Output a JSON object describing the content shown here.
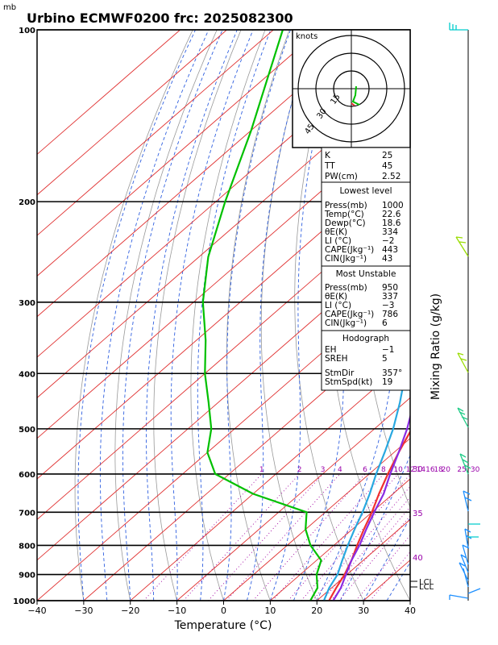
{
  "title": "Urbino ECMWF0200 frc: 2025082300",
  "pressure_unit": "mb",
  "chart_data": {
    "type": "line",
    "title": "Urbino ECMWF0200 frc: 2025082300",
    "xlabel": "Temperature (°C)",
    "ylabel_right": "Mixing Ratio (g/kg)",
    "xlim": [
      -40,
      40
    ],
    "ylim_pressure": [
      1000,
      100
    ],
    "x_ticks": [
      "−40",
      "−30",
      "−20",
      "−10",
      "0",
      "10",
      "20",
      "30",
      "40"
    ],
    "p_ticks": [
      "1000",
      "900",
      "800",
      "700",
      "600",
      "500",
      "400",
      "300",
      "200",
      "100"
    ],
    "mixing_ratio_labels": [
      "1",
      "2",
      "3",
      "4",
      "6",
      "8",
      "10",
      "12",
      "14",
      "16",
      "18",
      "20",
      "25",
      "30"
    ],
    "theta_e_labels": [
      "30",
      "35",
      "40"
    ],
    "series": [
      {
        "color": "#f03030",
        "points": [
          [
            22.6,
            1000
          ],
          [
            21.0,
            950
          ],
          [
            19.5,
            900
          ],
          [
            17.5,
            850
          ],
          [
            15.0,
            800
          ],
          [
            12.5,
            750
          ],
          [
            10.0,
            700
          ],
          [
            7.0,
            650
          ],
          [
            4.0,
            600
          ],
          [
            1.0,
            550
          ],
          [
            -2.0,
            500
          ],
          [
            -6.0,
            450
          ],
          [
            -10.0,
            400
          ],
          [
            -15.0,
            350
          ],
          [
            -21.0,
            300
          ],
          [
            -28.0,
            250
          ],
          [
            -38.0,
            200
          ],
          [
            -52.0,
            150
          ],
          [
            -72.0,
            100
          ]
        ]
      },
      {
        "color": "#00c000",
        "points": [
          [
            18.6,
            1000
          ],
          [
            17.0,
            950
          ],
          [
            13.5,
            900
          ],
          [
            11.0,
            850
          ],
          [
            5.0,
            800
          ],
          [
            0.0,
            750
          ],
          [
            -4.0,
            700
          ],
          [
            -20.0,
            650
          ],
          [
            -33.0,
            600
          ],
          [
            -40.0,
            550
          ],
          [
            -45.0,
            500
          ],
          [
            -52.0,
            450
          ],
          [
            -60.0,
            400
          ],
          [
            -68.0,
            350
          ],
          [
            -78.0,
            300
          ],
          [
            -88.0,
            250
          ],
          [
            -98.0,
            200
          ],
          [
            -110.0,
            150
          ],
          [
            -128.0,
            100
          ]
        ]
      },
      {
        "color": "#29a8e0",
        "points": [
          [
            21.5,
            1000
          ],
          [
            19.5,
            950
          ],
          [
            18.0,
            900
          ],
          [
            15.5,
            850
          ],
          [
            13.0,
            800
          ],
          [
            10.5,
            750
          ],
          [
            8.0,
            700
          ],
          [
            5.0,
            650
          ],
          [
            1.5,
            600
          ],
          [
            -2.0,
            550
          ],
          [
            -6.0,
            500
          ],
          [
            -11.0,
            450
          ],
          [
            -17.0,
            400
          ],
          [
            -23.0,
            350
          ],
          [
            -30.0,
            300
          ],
          [
            -38.5,
            250
          ],
          [
            -49.0,
            200
          ],
          [
            -64.0,
            150
          ],
          [
            -87.0,
            100
          ]
        ]
      },
      {
        "color": "#8a2be2",
        "points": [
          [
            23.5,
            1000
          ],
          [
            22.0,
            950
          ],
          [
            19.8,
            900
          ],
          [
            17.5,
            850
          ],
          [
            15.5,
            800
          ],
          [
            13.0,
            750
          ],
          [
            10.5,
            700
          ],
          [
            8.0,
            650
          ],
          [
            4.5,
            600
          ],
          [
            1.0,
            550
          ],
          [
            -3.0,
            500
          ],
          [
            -8.0,
            450
          ],
          [
            -14.0,
            400
          ],
          [
            -20.5,
            350
          ],
          [
            -27.5,
            300
          ],
          [
            -36.5,
            250
          ],
          [
            -47.0,
            200
          ],
          [
            -62.0,
            150
          ],
          [
            -83.0,
            100
          ]
        ]
      }
    ]
  },
  "hodograph": {
    "unit_label": "knots",
    "ring_labels": [
      "15",
      "30",
      "45"
    ]
  },
  "indices": {
    "rows": [
      [
        "K",
        "25"
      ],
      [
        "TT",
        "45"
      ],
      [
        "PW(cm)",
        "2.52"
      ]
    ]
  },
  "lowest_level": {
    "heading": "Lowest level",
    "rows": [
      [
        "Press(mb)",
        "1000"
      ],
      [
        "Temp(°C)",
        "22.6"
      ],
      [
        "Dewp(°C)",
        "18.6"
      ],
      [
        "θE(K)",
        "334"
      ],
      [
        "LI (°C)",
        "−2"
      ],
      [
        "CAPE(Jkg⁻¹)",
        "443"
      ],
      [
        "CIN(Jkg⁻¹)",
        "43"
      ]
    ]
  },
  "most_unstable": {
    "heading": "Most Unstable",
    "rows": [
      [
        "Press(mb)",
        "950"
      ],
      [
        "θE(K)",
        "337"
      ],
      [
        "LI (°C)",
        "−3"
      ],
      [
        "CAPE(Jkg⁻¹)",
        "786"
      ],
      [
        "CIN(Jkg⁻¹)",
        "6"
      ]
    ]
  },
  "hodograph_box": {
    "heading": "Hodograph",
    "rows": [
      [
        "EH",
        "−1"
      ],
      [
        "SREH",
        "5"
      ],
      [
        "StmDir",
        "357°"
      ],
      [
        "StmSpd(kt)",
        "19"
      ]
    ]
  },
  "side_labels": {
    "lcl": "LCL",
    "lfc": "LCL"
  },
  "colors": {
    "temperature": "#f03030",
    "dewpoint": "#00c000",
    "parcel": "#29a8e0",
    "virtual": "#8a2be2",
    "isotherm": "#e03030",
    "dry_adiabat": "#999999",
    "moist_adiabat": "#3060e0",
    "mixing_ratio": "#a000a0",
    "wind_barb": "#00aaff"
  }
}
